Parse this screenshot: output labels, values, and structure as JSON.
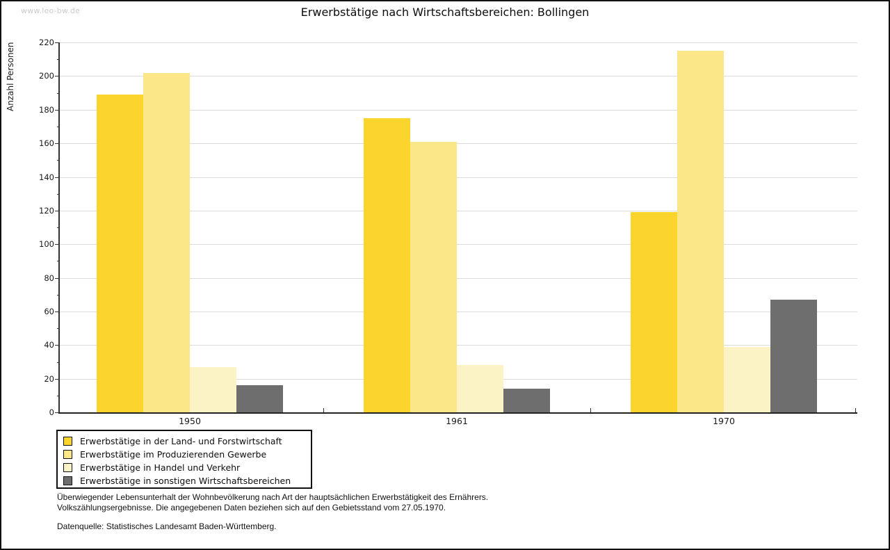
{
  "watermark": "www.leo-bw.de",
  "chart_data": {
    "type": "bar",
    "title": "Erwerbstätige nach Wirtschaftsbereichen: Bollingen",
    "categories": [
      "1950",
      "1961",
      "1970"
    ],
    "series": [
      {
        "name": "Erwerbstätige in der Land- und Forstwirtschaft",
        "color": "#FBD42D",
        "values": [
          189,
          175,
          119
        ]
      },
      {
        "name": "Erwerbstätige im Produzierenden Gewerbe",
        "color": "#FBE787",
        "values": [
          202,
          161,
          215
        ]
      },
      {
        "name": "Erwerbstätige in Handel und Verkehr",
        "color": "#FBF3C6",
        "values": [
          27,
          28,
          39
        ]
      },
      {
        "name": "Erwerbstätige in sonstigen Wirtschaftsbereichen",
        "color": "#6E6E6E",
        "values": [
          16,
          14,
          67
        ]
      }
    ],
    "xlabel": "",
    "ylabel": "Anzahl Personen",
    "ylim": [
      0,
      220
    ],
    "ytick_step": 20,
    "ytick_minor_step": 10,
    "grid": true,
    "gridline_color": "#dbdbdb",
    "legend_position": "bottom-left"
  },
  "footnote": {
    "line1": "Überwiegender Lebensunterhalt der Wohnbevölkerung nach Art der hauptsächlichen Erwerbstätigkeit des Ernährers.",
    "line2": "Volkszählungsergebnisse. Die angegebenen Daten beziehen sich auf den Gebietsstand vom 27.05.1970.",
    "source": "Datenquelle: Statistisches Landesamt Baden-Württemberg."
  }
}
